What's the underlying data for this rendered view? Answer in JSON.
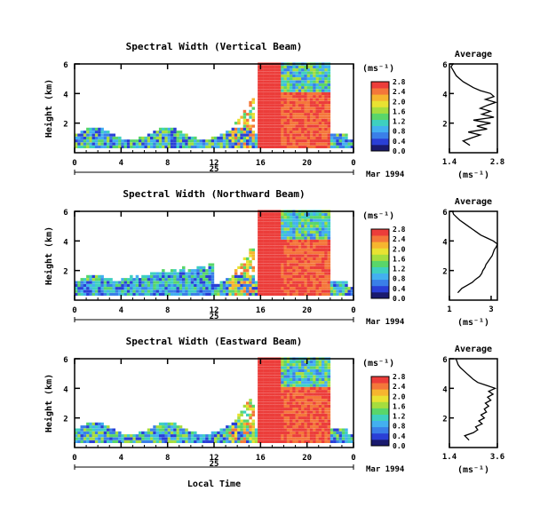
{
  "figure": {
    "xlabel": "Local Time",
    "date_label": "Mar 1994",
    "day_label": "25",
    "colors": [
      "#1a1a6e",
      "#2a3fd6",
      "#3a7fe8",
      "#43b0f0",
      "#3ed0c0",
      "#59d66a",
      "#a6dd3e",
      "#e9e232",
      "#f6b52f",
      "#f4773a",
      "#ec3d3a"
    ]
  },
  "chart_data": [
    {
      "type": "heatmap",
      "title": "Spectral Width (Vertical Beam)",
      "ylabel": "Height (km)",
      "x_ticks": [
        "0",
        "4",
        "8",
        "12",
        "16",
        "20",
        "0"
      ],
      "y_ticks": [
        "2",
        "4",
        "6"
      ],
      "xlim": [
        0,
        24
      ],
      "ylim": [
        0,
        6
      ],
      "colorbar": {
        "unit": "(ms⁻¹)",
        "ticks": [
          "0.0",
          "0.4",
          "0.8",
          "1.2",
          "1.6",
          "2.0",
          "2.4",
          "2.8"
        ],
        "range": [
          0,
          2.8
        ]
      },
      "profile": {
        "title": "Average",
        "xlabel": "(ms⁻¹)",
        "x_ticks": [
          "1.4",
          "2.8"
        ],
        "xlim": [
          1.4,
          2.8
        ],
        "y_ticks": [
          "2",
          "4",
          "6"
        ],
        "ylim": [
          0,
          6
        ],
        "heights": [
          0.5,
          0.8,
          1.0,
          1.2,
          1.4,
          1.6,
          1.8,
          2.0,
          2.2,
          2.4,
          2.6,
          2.8,
          3.0,
          3.2,
          3.4,
          3.6,
          3.8,
          4.0,
          4.2,
          4.4,
          4.6,
          4.8,
          5.0,
          5.2,
          5.4,
          5.6,
          5.8,
          6.0
        ],
        "values": [
          2.0,
          1.8,
          2.05,
          2.3,
          1.95,
          2.5,
          2.2,
          2.6,
          2.1,
          2.7,
          2.35,
          2.6,
          2.3,
          2.5,
          2.75,
          2.45,
          2.7,
          2.6,
          2.3,
          2.1,
          1.95,
          1.8,
          1.7,
          1.6,
          1.55,
          1.5,
          1.45,
          1.5
        ]
      }
    },
    {
      "type": "heatmap",
      "title": "Spectral Width (Northward Beam)",
      "ylabel": "Height (km)",
      "x_ticks": [
        "0",
        "4",
        "8",
        "12",
        "16",
        "20",
        "0"
      ],
      "y_ticks": [
        "2",
        "4",
        "6"
      ],
      "xlim": [
        0,
        24
      ],
      "ylim": [
        0,
        6
      ],
      "colorbar": {
        "unit": "(ms⁻¹)",
        "ticks": [
          "0.0",
          "0.4",
          "0.8",
          "1.2",
          "1.6",
          "2.0",
          "2.4",
          "2.8"
        ],
        "range": [
          0,
          2.8
        ]
      },
      "profile": {
        "title": "Average",
        "xlabel": "(ms⁻¹)",
        "x_ticks": [
          "1",
          "3"
        ],
        "xlim": [
          1,
          3.3
        ],
        "y_ticks": [
          "2",
          "4",
          "6"
        ],
        "ylim": [
          0,
          6
        ],
        "heights": [
          0.5,
          0.8,
          1.0,
          1.2,
          1.4,
          1.6,
          1.8,
          2.0,
          2.2,
          2.4,
          2.6,
          2.8,
          3.0,
          3.2,
          3.4,
          3.6,
          3.8,
          4.0,
          4.2,
          4.4,
          4.6,
          4.8,
          5.0,
          5.2,
          5.4,
          5.6,
          5.8,
          6.0
        ],
        "values": [
          1.4,
          1.6,
          1.85,
          2.1,
          2.25,
          2.45,
          2.55,
          2.6,
          2.7,
          2.75,
          2.85,
          2.95,
          3.05,
          3.1,
          3.15,
          3.25,
          3.3,
          3.1,
          2.8,
          2.5,
          2.3,
          2.1,
          1.9,
          1.7,
          1.5,
          1.35,
          1.2,
          1.15
        ]
      }
    },
    {
      "type": "heatmap",
      "title": "Spectral Width (Eastward Beam)",
      "ylabel": "Height (km)",
      "x_ticks": [
        "0",
        "4",
        "8",
        "12",
        "16",
        "20",
        "0"
      ],
      "y_ticks": [
        "2",
        "4",
        "6"
      ],
      "xlim": [
        0,
        24
      ],
      "ylim": [
        0,
        6
      ],
      "colorbar": {
        "unit": "(ms⁻¹)",
        "ticks": [
          "0.0",
          "0.4",
          "0.8",
          "1.2",
          "1.6",
          "2.0",
          "2.4",
          "2.8"
        ],
        "range": [
          0,
          2.8
        ]
      },
      "profile": {
        "title": "Average",
        "xlabel": "(ms⁻¹)",
        "x_ticks": [
          "1.4",
          "3.6"
        ],
        "xlim": [
          1.4,
          3.6
        ],
        "y_ticks": [
          "2",
          "4",
          "6"
        ],
        "ylim": [
          0,
          6
        ],
        "heights": [
          0.5,
          0.8,
          1.0,
          1.2,
          1.4,
          1.6,
          1.8,
          2.0,
          2.2,
          2.4,
          2.6,
          2.8,
          3.0,
          3.2,
          3.4,
          3.6,
          3.8,
          4.0,
          4.2,
          4.4,
          4.6,
          4.8,
          5.0,
          5.2,
          5.4,
          5.6,
          5.8,
          6.0
        ],
        "values": [
          2.3,
          2.1,
          2.5,
          2.7,
          2.6,
          2.9,
          2.75,
          3.0,
          2.85,
          3.1,
          3.0,
          3.2,
          3.05,
          3.3,
          3.15,
          3.4,
          3.2,
          3.5,
          3.1,
          2.7,
          2.5,
          2.35,
          2.2,
          2.05,
          1.9,
          1.8,
          1.75,
          1.7
        ]
      }
    }
  ]
}
